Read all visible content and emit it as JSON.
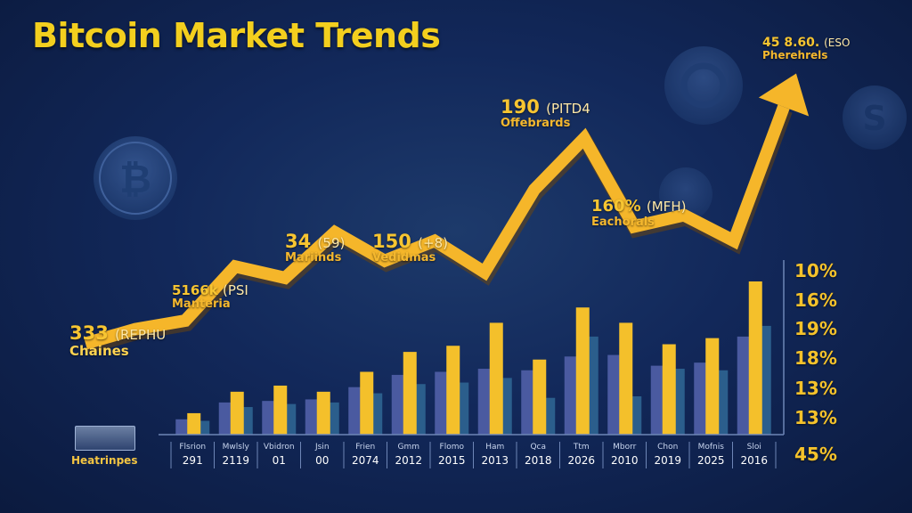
{
  "colors": {
    "line": "#f5b62a",
    "bar_front": "#f4c02b",
    "bar_back": "#4a5aa0",
    "bar_teal": "#2b5e8c",
    "background": "#12285a"
  },
  "chart_data": {
    "type": "bar",
    "title": "Bitcoin Market Trends",
    "categories": [
      {
        "top": "Flsrion",
        "bottom": "291"
      },
      {
        "top": "Mwlsly",
        "bottom": "2119"
      },
      {
        "top": "Vbidron",
        "bottom": "01"
      },
      {
        "top": "Jsin",
        "bottom": "00"
      },
      {
        "top": "Frien",
        "bottom": "2074"
      },
      {
        "top": "Gmm",
        "bottom": "2012"
      },
      {
        "top": "Flomo",
        "bottom": "2015"
      },
      {
        "top": "Ham",
        "bottom": "2013"
      },
      {
        "top": "Qca",
        "bottom": "2018"
      },
      {
        "top": "Ttm",
        "bottom": "2026"
      },
      {
        "top": "Mborr",
        "bottom": "2010"
      },
      {
        "top": "Chon",
        "bottom": "2019"
      },
      {
        "top": "Mofnis",
        "bottom": "2025"
      },
      {
        "top": "Sloi",
        "bottom": "2016"
      }
    ],
    "series": [
      {
        "values": [
          14,
          28,
          32,
          28,
          41,
          54,
          58,
          73,
          49,
          83,
          73,
          59,
          63,
          100
        ]
      },
      {
        "values": [
          10,
          21,
          22,
          23,
          31,
          39,
          41,
          43,
          42,
          51,
          52,
          45,
          47,
          64
        ]
      },
      {
        "values": [
          9,
          18,
          20,
          21,
          27,
          33,
          34,
          37,
          24,
          64,
          25,
          43,
          42,
          71
        ]
      }
    ],
    "trend_line": {
      "label_axis": "Heatrinpes",
      "values": [
        17,
        22,
        25,
        44,
        40,
        56,
        46,
        53,
        42,
        71,
        89,
        58,
        62,
        53,
        100
      ],
      "annotations": [
        {
          "value": "333",
          "unit": "(REPHU",
          "label": "Chaines"
        },
        {
          "value": "5166k",
          "unit": "(PSI",
          "label": "Manteria"
        },
        {
          "value": "34",
          "unit": "(59)",
          "label": "Mariinds"
        },
        {
          "value": "150",
          "unit": "(+8)",
          "label": "Vedidmas"
        },
        {
          "value": "190",
          "unit": "(PITD4",
          "label": "Offebrards"
        },
        {
          "value": "160%",
          "unit": "(MFH)",
          "label": "Eachorals"
        },
        {
          "value": "45 8.60.",
          "unit": "(ESO",
          "label": "Pherehrels"
        }
      ]
    },
    "right_axis": [
      "10%",
      "16%",
      "19%",
      "18%",
      "13%",
      "13%",
      "45%"
    ]
  }
}
